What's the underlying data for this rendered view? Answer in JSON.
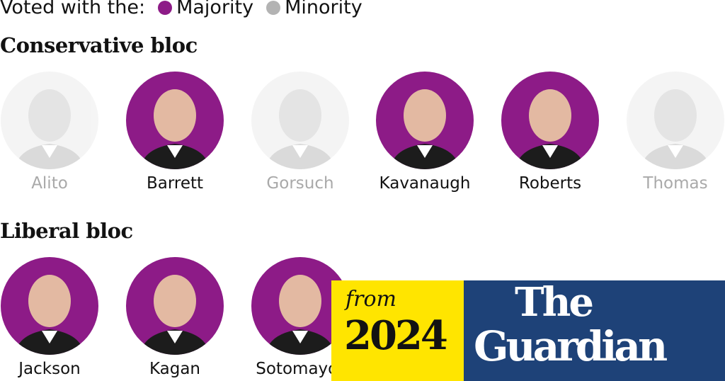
{
  "legend": {
    "label": "Voted with the:",
    "majority": "Majority",
    "minority": "Minority"
  },
  "colors": {
    "majority": "#8d1b87",
    "minority": "#b3b3b3",
    "guardian_blue": "#1e4278",
    "promo_yellow": "#ffe500"
  },
  "conservative": {
    "title": "Conservative bloc",
    "justices": [
      {
        "name": "Alito",
        "vote": "minority"
      },
      {
        "name": "Barrett",
        "vote": "majority"
      },
      {
        "name": "Gorsuch",
        "vote": "minority"
      },
      {
        "name": "Kavanaugh",
        "vote": "majority"
      },
      {
        "name": "Roberts",
        "vote": "majority"
      },
      {
        "name": "Thomas",
        "vote": "minority"
      }
    ]
  },
  "liberal": {
    "title": "Liberal bloc",
    "justices": [
      {
        "name": "Jackson",
        "vote": "majority"
      },
      {
        "name": "Kagan",
        "vote": "majority"
      },
      {
        "name": "Sotomayor",
        "vote": "majority"
      }
    ]
  },
  "promo": {
    "from": "from",
    "year": "2024",
    "brand_line1": "The",
    "brand_line2": "Guardian"
  }
}
